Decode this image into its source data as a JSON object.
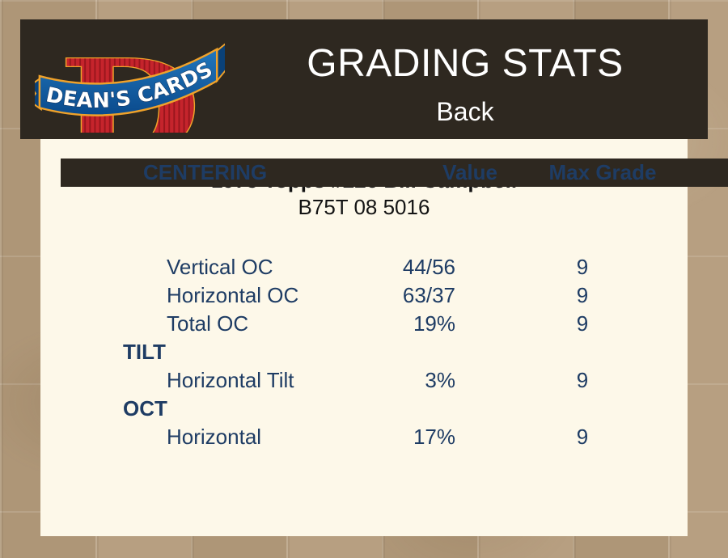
{
  "header": {
    "title": "GRADING STATS",
    "subtitle": "Back",
    "logo": {
      "brand": "DEAN'S CARDS",
      "monogram": "D"
    }
  },
  "card": {
    "title": "1975 Topps #226 Bill Campbell",
    "serial": "B75T 08 5016"
  },
  "table": {
    "rows": [
      {
        "type": "header",
        "label": "CENTERING",
        "value": "Value",
        "max": "Max Grade"
      },
      {
        "type": "data",
        "label": "Vertical OC",
        "value": "44/56",
        "max": "9"
      },
      {
        "type": "data",
        "label": "Horizontal OC",
        "value": "63/37",
        "max": "9"
      },
      {
        "type": "data",
        "label": "Total OC",
        "value": "19%",
        "max": "9"
      },
      {
        "type": "section",
        "label": "TILT",
        "value": "",
        "max": ""
      },
      {
        "type": "data",
        "label": "Horizontal Tilt",
        "value": "3%",
        "max": "9"
      },
      {
        "type": "section",
        "label": "OCT",
        "value": "",
        "max": ""
      },
      {
        "type": "data",
        "label": "Horizontal",
        "value": "17%",
        "max": "9"
      }
    ]
  },
  "colors": {
    "page_bg": "#b49b7b",
    "header_bg": "#2e2820",
    "panel_bg": "#fdf8e9",
    "header_text": "#ffffff",
    "title_text": "#141414",
    "table_text": "#1e3c64",
    "logo_red": "#c5242c",
    "logo_red_stripe": "#99161d",
    "logo_blue": "#0d4f92",
    "logo_blue_dark": "#0a4178",
    "logo_gold": "#f0a22a",
    "logo_text_outline": "#17335b"
  }
}
